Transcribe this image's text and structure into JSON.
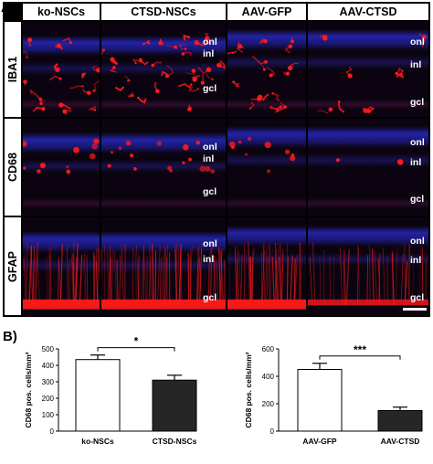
{
  "figure": {
    "panel_a_label": "A)",
    "panel_b_label": "B)",
    "columns": [
      "ko-NSCs",
      "CTSD-NSCs",
      "AAV-GFP",
      "AAV-CTSD"
    ],
    "rows": [
      "IBA1",
      "CD68",
      "GFAP"
    ],
    "retina_layers": [
      "onl",
      "inl",
      "gcl"
    ],
    "colors": {
      "stain_red": "#ff1a1a",
      "nuclei_blue": "#2a2acc",
      "background": "#000000"
    }
  },
  "chart_data": [
    {
      "type": "bar",
      "categories": [
        "ko-NSCs",
        "CTSD-NSCs"
      ],
      "values": [
        435,
        310
      ],
      "errors": [
        28,
        30
      ],
      "bar_colors": [
        "#ffffff",
        "#262626"
      ],
      "ylabel": "CD68 pos. cells/mm²",
      "ylim": [
        0,
        500
      ],
      "yticks": [
        "0",
        "100",
        "200",
        "300",
        "400",
        "500"
      ],
      "significance": "*",
      "grid": false
    },
    {
      "type": "bar",
      "categories": [
        "AAV-GFP",
        "AAV-CTSD"
      ],
      "values": [
        450,
        150
      ],
      "errors": [
        45,
        25
      ],
      "bar_colors": [
        "#ffffff",
        "#262626"
      ],
      "ylabel": "CD68 pos. cells/mm²",
      "ylim": [
        0,
        600
      ],
      "yticks": [
        "0",
        "200",
        "400",
        "600"
      ],
      "significance": "***",
      "grid": false
    }
  ]
}
